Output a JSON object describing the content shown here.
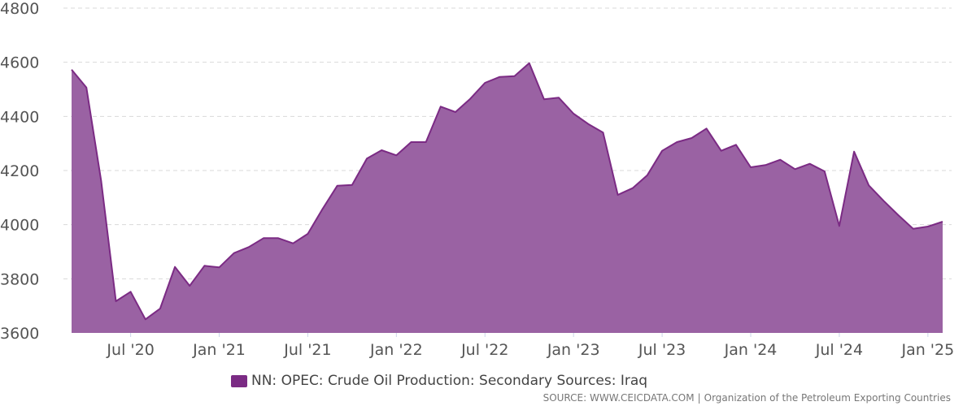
{
  "colors": {
    "series_fill": "#9a62a3",
    "series_line": "#7b2b84",
    "legend_swatch": "#7b2b84",
    "grid": "#d9d9d9"
  },
  "legend": {
    "label": "NN: OPEC: Crude Oil Production: Secondary Sources: Iraq"
  },
  "source": {
    "left": "SOURCE: WWW.CEICDATA.COM",
    "separator": "|",
    "right": "Organization of the Petroleum Exporting Countries"
  },
  "chart_data": {
    "type": "area",
    "title": "",
    "xlabel": "",
    "ylabel": "",
    "ylim": [
      3600,
      4800
    ],
    "yticks": [
      3600,
      3800,
      4000,
      4200,
      4400,
      4600,
      4800
    ],
    "grid": true,
    "legend_position": "bottom",
    "xticks": [
      {
        "x": "2020-07",
        "label": "Jul '20"
      },
      {
        "x": "2021-01",
        "label": "Jan '21"
      },
      {
        "x": "2021-07",
        "label": "Jul '21"
      },
      {
        "x": "2022-01",
        "label": "Jan '22"
      },
      {
        "x": "2022-07",
        "label": "Jul '22"
      },
      {
        "x": "2023-01",
        "label": "Jan '23"
      },
      {
        "x": "2023-07",
        "label": "Jul '23"
      },
      {
        "x": "2024-01",
        "label": "Jan '24"
      },
      {
        "x": "2024-07",
        "label": "Jul '24"
      },
      {
        "x": "2025-01",
        "label": "Jan '25"
      }
    ],
    "x": [
      "2020-03",
      "2020-04",
      "2020-05",
      "2020-06",
      "2020-07",
      "2020-08",
      "2020-09",
      "2020-10",
      "2020-11",
      "2020-12",
      "2021-01",
      "2021-02",
      "2021-03",
      "2021-04",
      "2021-05",
      "2021-06",
      "2021-07",
      "2021-08",
      "2021-09",
      "2021-10",
      "2021-11",
      "2021-12",
      "2022-01",
      "2022-02",
      "2022-03",
      "2022-04",
      "2022-05",
      "2022-06",
      "2022-07",
      "2022-08",
      "2022-09",
      "2022-10",
      "2022-11",
      "2022-12",
      "2023-01",
      "2023-02",
      "2023-03",
      "2023-04",
      "2023-05",
      "2023-06",
      "2023-07",
      "2023-08",
      "2023-09",
      "2023-10",
      "2023-11",
      "2023-12",
      "2024-01",
      "2024-02",
      "2024-03",
      "2024-04",
      "2024-05",
      "2024-06",
      "2024-07",
      "2024-08",
      "2024-09",
      "2024-10",
      "2024-11",
      "2024-12",
      "2025-01",
      "2025-02"
    ],
    "series": [
      {
        "name": "NN: OPEC: Crude Oil Production: Secondary Sources: Iraq",
        "values": [
          4573,
          4507,
          4163,
          3717,
          3752,
          3650,
          3690,
          3844,
          3774,
          3848,
          3842,
          3895,
          3917,
          3950,
          3950,
          3931,
          3966,
          4058,
          4144,
          4147,
          4244,
          4275,
          4256,
          4305,
          4305,
          4436,
          4416,
          4465,
          4524,
          4546,
          4549,
          4597,
          4463,
          4469,
          4410,
          4372,
          4340,
          4110,
          4135,
          4183,
          4273,
          4305,
          4320,
          4355,
          4273,
          4295,
          4212,
          4220,
          4240,
          4205,
          4225,
          4197,
          3995,
          4270,
          4145,
          4088,
          4035,
          3985,
          3993,
          4011
        ]
      }
    ]
  }
}
